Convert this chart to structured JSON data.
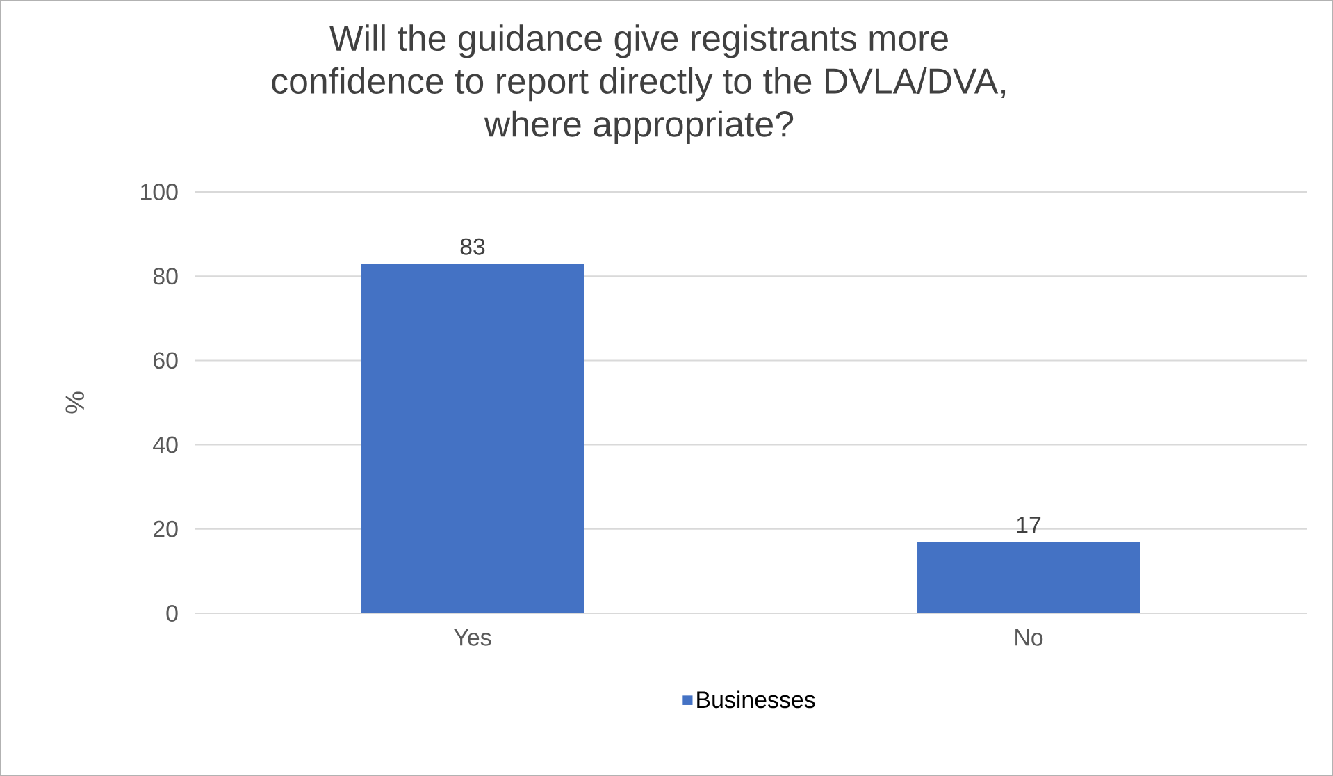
{
  "chart_data": {
    "type": "bar",
    "title": "Will the guidance give registrants more confidence to report directly to the DVLA/DVA, where appropriate?",
    "ylabel": "%",
    "categories": [
      "Yes",
      "No"
    ],
    "series": [
      {
        "name": "Businesses",
        "color": "#4472c4",
        "values": [
          83,
          17
        ],
        "value_labels": [
          "83",
          "17"
        ]
      }
    ],
    "ylim": [
      0,
      100
    ],
    "yticks": [
      0,
      20,
      40,
      60,
      80,
      100
    ],
    "grid": "y",
    "legend": "bottom"
  }
}
